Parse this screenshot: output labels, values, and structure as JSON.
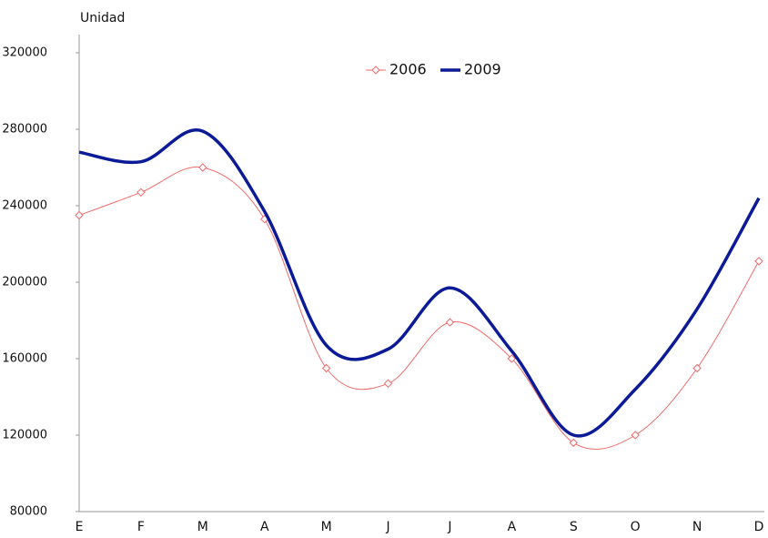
{
  "chart_data": {
    "type": "line",
    "y_label": "Unidad",
    "categories": [
      "E",
      "F",
      "M",
      "A",
      "M",
      "J",
      "J",
      "A",
      "S",
      "O",
      "N",
      "D"
    ],
    "series": [
      {
        "name": "2006",
        "color": "#ee6a6a",
        "marker": "diamond",
        "width": 1,
        "values": [
          235000,
          247000,
          260000,
          233000,
          155000,
          147000,
          179000,
          160000,
          116000,
          120000,
          155000,
          211000
        ]
      },
      {
        "name": "2009",
        "color": "#0b1a96",
        "marker": null,
        "width": 3.5,
        "values": [
          268000,
          263000,
          279000,
          237000,
          167000,
          165000,
          197000,
          164000,
          120000,
          144000,
          186000,
          244000
        ]
      }
    ],
    "ylim": [
      80000,
      320000
    ],
    "yticks": [
      80000,
      120000,
      160000,
      200000,
      240000,
      280000,
      320000
    ],
    "grid": false,
    "legend": "top"
  }
}
